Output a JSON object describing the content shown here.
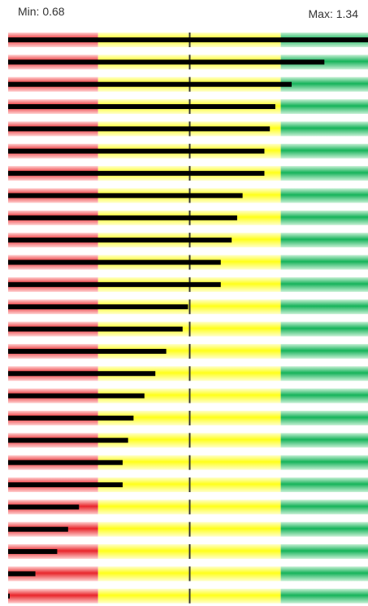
{
  "header": {
    "min_label": "Min: 0.68",
    "max_label": "Max: 1.34"
  },
  "chart_data": {
    "type": "bar",
    "orientation": "horizontal",
    "min": 0.68,
    "max": 1.34,
    "xlim": [
      0.68,
      1.34
    ],
    "target": 1.013,
    "bands": [
      {
        "from": 0.68,
        "to": 0.845,
        "color": "#e8262b"
      },
      {
        "from": 0.845,
        "to": 1.18,
        "color": "#ffff1a"
      },
      {
        "from": 1.18,
        "to": 1.34,
        "color": "#16b35a"
      }
    ],
    "bar_color": "#000000",
    "values": [
      1.34,
      1.26,
      1.2,
      1.17,
      1.16,
      1.15,
      1.15,
      1.11,
      1.1,
      1.09,
      1.07,
      1.07,
      1.01,
      1.0,
      0.97,
      0.95,
      0.93,
      0.91,
      0.9,
      0.89,
      0.89,
      0.81,
      0.79,
      0.77,
      0.73,
      0.68
    ]
  }
}
